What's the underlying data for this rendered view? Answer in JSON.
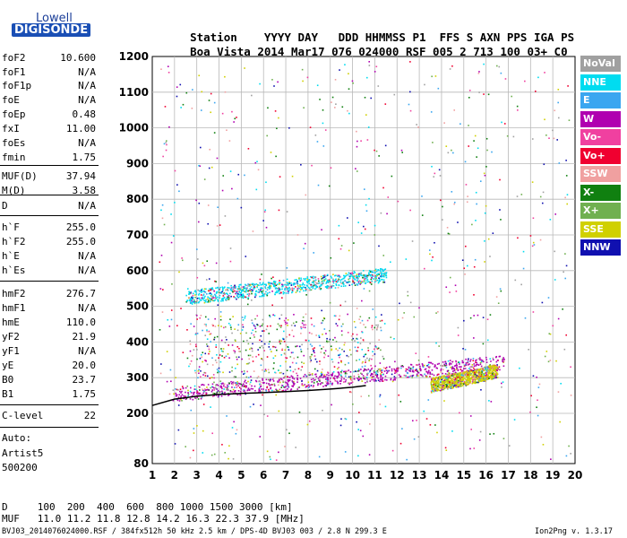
{
  "header": {
    "logo_top": "Lowell",
    "logo_bottom": "DIGISONDE",
    "labels": [
      "Station",
      "YYYY",
      "DAY",
      "DDD",
      "HHMMSS",
      "P1",
      "FFS",
      "S",
      "AXN",
      "PPS",
      "IGA",
      "PS"
    ],
    "values": [
      "Boa Vista",
      "2014",
      "Mar17",
      "076",
      "024000",
      "RSF",
      "005",
      "2",
      "713",
      "100",
      "03+",
      "C0"
    ]
  },
  "scaled_params": [
    {
      "key": "foF2",
      "value": "10.600"
    },
    {
      "key": "foF1",
      "value": "N/A"
    },
    {
      "key": "foF1p",
      "value": "N/A"
    },
    {
      "key": "foE",
      "value": "N/A"
    },
    {
      "key": "foEp",
      "value": "0.48"
    },
    {
      "key": "fxI",
      "value": "11.00"
    },
    {
      "key": "foEs",
      "value": "N/A"
    },
    {
      "key": "fmin",
      "value": "1.75"
    },
    {
      "key": "MUF(D)",
      "value": "37.94"
    },
    {
      "key": "M(D)",
      "value": "3.58"
    },
    {
      "key": "D",
      "value": "N/A"
    },
    {
      "key": "h`F",
      "value": "255.0"
    },
    {
      "key": "h`F2",
      "value": "255.0"
    },
    {
      "key": "h`E",
      "value": "N/A"
    },
    {
      "key": "h`Es",
      "value": "N/A"
    },
    {
      "key": "hmF2",
      "value": "276.7"
    },
    {
      "key": "hmF1",
      "value": "N/A"
    },
    {
      "key": "hmE",
      "value": "110.0"
    },
    {
      "key": "yF2",
      "value": "21.9"
    },
    {
      "key": "yF1",
      "value": "N/A"
    },
    {
      "key": "yE",
      "value": "20.0"
    },
    {
      "key": "B0",
      "value": "23.7"
    },
    {
      "key": "B1",
      "value": "1.75"
    },
    {
      "key": "C-level",
      "value": "22"
    }
  ],
  "autoscaling": {
    "line1": "Auto:",
    "line2": "Artist5",
    "line3": "500200"
  },
  "legend": [
    {
      "label": "NoVal",
      "color": "#a0a0a0"
    },
    {
      "label": "NNE",
      "color": "#00dcf0"
    },
    {
      "label": "E",
      "color": "#3aa6f0"
    },
    {
      "label": "W",
      "color": "#b000b0"
    },
    {
      "label": "Vo-",
      "color": "#f040a0"
    },
    {
      "label": "Vo+",
      "color": "#f00030"
    },
    {
      "label": "SSW",
      "color": "#f0a0a0"
    },
    {
      "label": "X-",
      "color": "#108010"
    },
    {
      "label": "X+",
      "color": "#70b050"
    },
    {
      "label": "SSE",
      "color": "#d0d000"
    },
    {
      "label": "NNW",
      "color": "#1010b0"
    }
  ],
  "muf_table": {
    "d_label": "D",
    "d_values": [
      "100",
      "200",
      "400",
      "600",
      "800",
      "1000",
      "1500",
      "3000"
    ],
    "d_unit": "[km]",
    "muf_label": "MUF",
    "muf_values": [
      "11.0",
      "11.2",
      "11.8",
      "12.8",
      "14.2",
      "16.3",
      "22.3",
      "37.9"
    ],
    "muf_unit": "[MHz]"
  },
  "footer": {
    "left": "BVJ03_2014076024000.RSF / 384fx512h 50 kHz 2.5 km / DPS-4D BVJ03 003 / 2.8 N 299.3 E",
    "right": "Ion2Png v. 1.3.17"
  },
  "chart_data": {
    "type": "scatter",
    "title": "",
    "xlabel": "",
    "ylabel": "",
    "x_ticks": [
      1,
      2,
      3,
      4,
      5,
      6,
      7,
      8,
      9,
      10,
      11,
      12,
      13,
      14,
      15,
      16,
      17,
      18,
      19,
      20
    ],
    "y_ticks": [
      80,
      200,
      300,
      400,
      500,
      600,
      700,
      800,
      900,
      1000,
      1100,
      1200
    ],
    "xlim": [
      1,
      20
    ],
    "ylim": [
      80,
      1200
    ],
    "grid": true,
    "traces": [
      {
        "name": "F2 O-trace",
        "color": "#b000b0",
        "x_range": [
          1.9,
          16.8
        ],
        "h_start": 255,
        "h_end": 345
      },
      {
        "name": "F2 second hop",
        "color": "#00dcf0",
        "x_range": [
          2.5,
          11.5
        ],
        "h_start": 525,
        "h_end": 590
      },
      {
        "name": "X-trace",
        "color": "#d0d000",
        "x_range": [
          13.5,
          16.5
        ],
        "h_start": 280,
        "h_end": 320
      }
    ],
    "profile_curve": {
      "color": "#000000",
      "x": [
        1.0,
        2.0,
        3.0,
        4.0,
        5.0,
        6.0,
        7.0,
        8.0,
        9.0,
        10.0,
        10.6
      ],
      "h": [
        222,
        240,
        248,
        253,
        256,
        258,
        261,
        264,
        268,
        273,
        278
      ]
    }
  }
}
